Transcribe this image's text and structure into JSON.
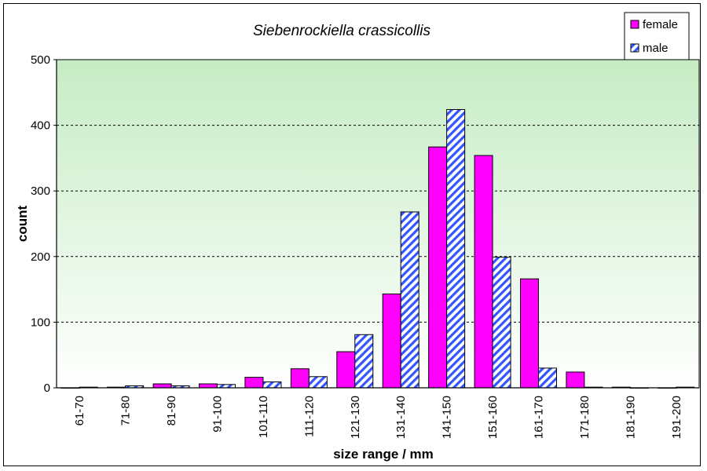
{
  "chart_data": {
    "type": "bar",
    "title": "Siebenrockiella crassicollis",
    "xlabel": "size range / mm",
    "ylabel": "count",
    "ylim": [
      0,
      500
    ],
    "yticks": [
      0,
      100,
      200,
      300,
      400,
      500
    ],
    "grid": true,
    "legend_position": "top-right",
    "categories": [
      "61-70",
      "71-80",
      "81-90",
      "91-100",
      "101-110",
      "111-120",
      "121-130",
      "131-140",
      "141-150",
      "151-160",
      "161-170",
      "171-180",
      "181-190",
      "191-200"
    ],
    "series": [
      {
        "name": "female",
        "color": "#ff00ff",
        "pattern": "solid",
        "values": [
          0,
          1,
          6,
          6,
          16,
          29,
          55,
          143,
          367,
          354,
          166,
          24,
          1,
          0
        ]
      },
      {
        "name": "male",
        "color": "#3355ff",
        "pattern": "diagonal-hatch",
        "values": [
          1,
          3,
          3,
          5,
          9,
          17,
          81,
          268,
          424,
          199,
          30,
          1,
          0,
          1
        ]
      }
    ]
  },
  "colors": {
    "plot_gradient_top": "#c6ecc4",
    "plot_gradient_bottom": "#ffffff"
  }
}
